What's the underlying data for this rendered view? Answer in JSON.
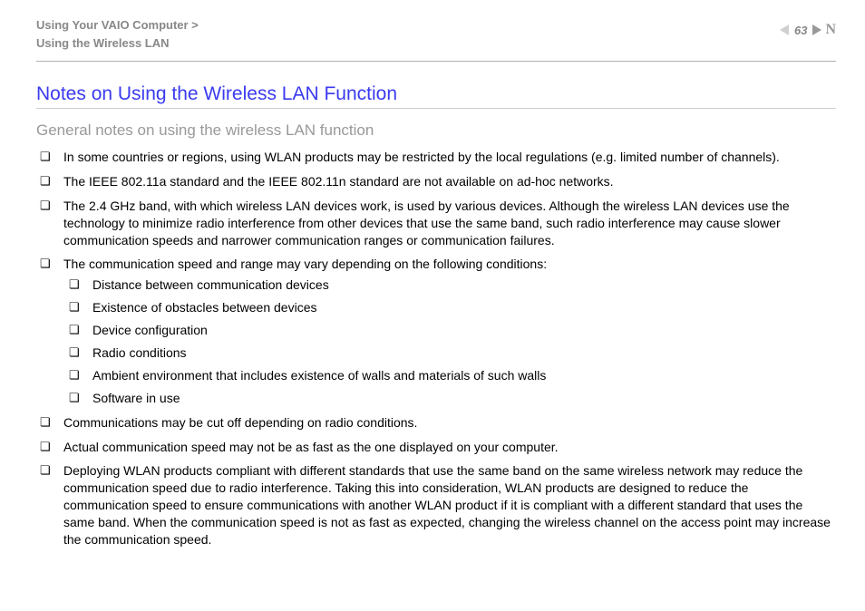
{
  "header": {
    "breadcrumb_line1": "Using Your VAIO Computer >",
    "breadcrumb_line2": "Using the Wireless LAN",
    "page_number": "63",
    "n_mark": "N"
  },
  "title": "Notes on Using the Wireless LAN Function",
  "subtitle": "General notes on using the wireless LAN function",
  "items": [
    "In some countries or regions, using WLAN products may be restricted by the local regulations (e.g. limited number of channels).",
    "The IEEE 802.11a standard and the IEEE 802.11n standard are not available on ad-hoc networks.",
    "The 2.4 GHz band, with which wireless LAN devices work, is used by various devices. Although the wireless LAN devices use the technology to minimize radio interference from other devices that use the same band, such radio interference may cause slower communication speeds and narrower communication ranges or communication failures.",
    "The communication speed and range may vary depending on the following conditions:",
    "Communications may be cut off depending on radio conditions.",
    "Actual communication speed may not be as fast as the one displayed on your computer.",
    "Deploying WLAN products compliant with different standards that use the same band on the same wireless network may reduce the communication speed due to radio interference. Taking this into consideration, WLAN products are designed to reduce the communication speed to ensure communications with another WLAN product if it is compliant with a different standard that uses the same band. When the communication speed is not as fast as expected, changing the wireless channel on the access point may increase the communication speed."
  ],
  "sub_items": [
    "Distance between communication devices",
    "Existence of obstacles between devices",
    "Device configuration",
    "Radio conditions",
    "Ambient environment that includes existence of walls and materials of such walls",
    "Software in use"
  ]
}
